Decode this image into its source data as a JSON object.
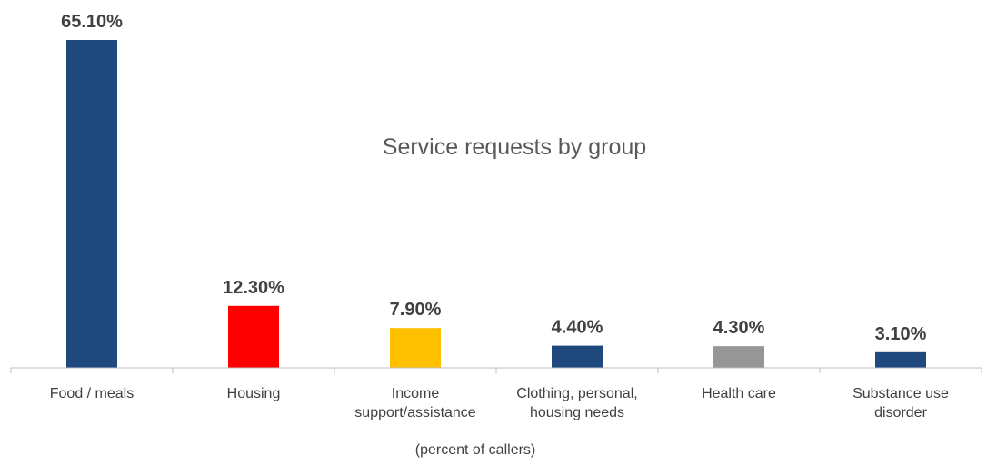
{
  "chart_data": {
    "type": "bar",
    "title": "Service requests by group",
    "xlabel": "(percent of callers)",
    "ylabel": "",
    "ylim": [
      0,
      70
    ],
    "grid": false,
    "legend": "none",
    "categories": [
      [
        "Food / meals"
      ],
      [
        "Housing"
      ],
      [
        "Income",
        "support/assistance"
      ],
      [
        "Clothing, personal,",
        "housing needs"
      ],
      [
        "Health care"
      ],
      [
        "Substance use",
        "disorder"
      ]
    ],
    "values": [
      65.1,
      12.3,
      7.9,
      4.4,
      4.3,
      3.1
    ],
    "data_labels": [
      "65.10%",
      "12.30%",
      "7.90%",
      "4.40%",
      "4.30%",
      "3.10%"
    ],
    "colors": [
      "#1F497D",
      "#FF0000",
      "#FFC000",
      "#1F497D",
      "#969696",
      "#1F497D"
    ],
    "axis_color": "#BFBFBF"
  }
}
